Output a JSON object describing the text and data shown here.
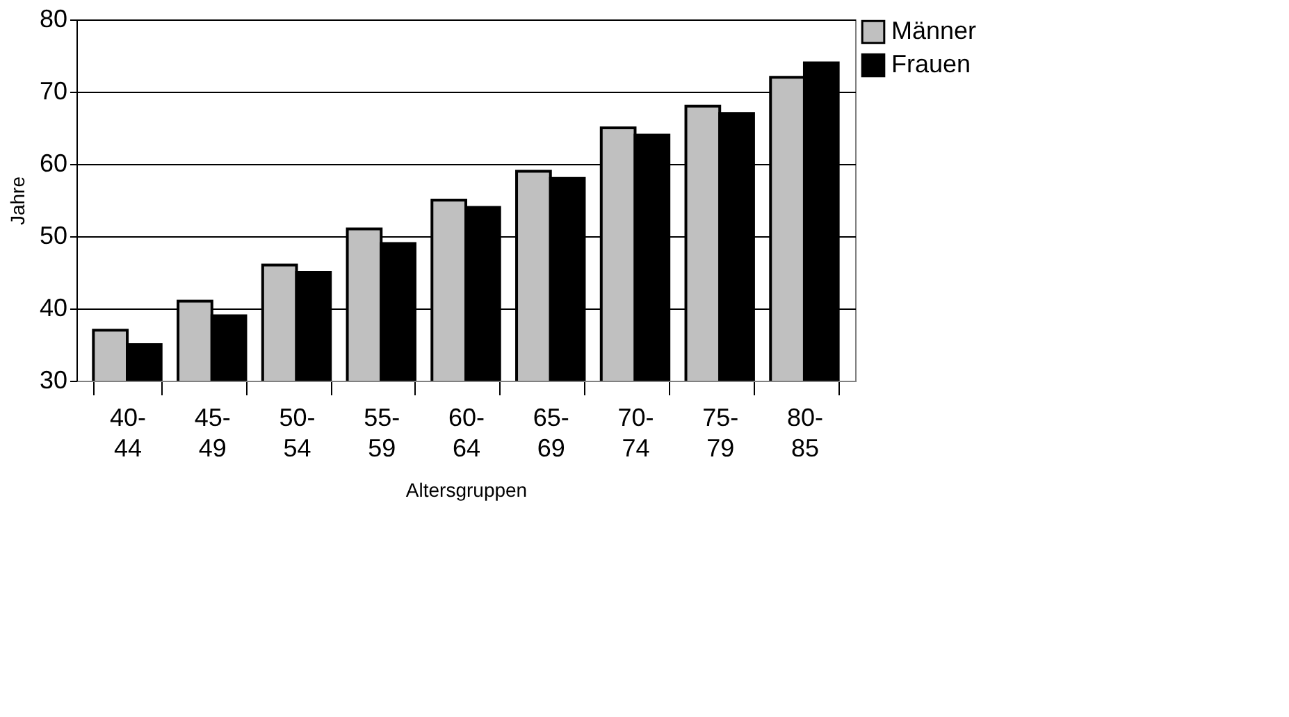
{
  "chart_data": {
    "type": "bar",
    "xlabel": "Altersgruppen",
    "ylabel": "Jahre",
    "categories": [
      "40-44",
      "45-49",
      "50-54",
      "55-59",
      "60-64",
      "65-69",
      "70-74",
      "75-79",
      "80-85"
    ],
    "series": [
      {
        "name": "Männer",
        "color": "#c0c0c0",
        "values": [
          37,
          41,
          46,
          51,
          55,
          59,
          65,
          68,
          72
        ]
      },
      {
        "name": "Frauen",
        "color": "#000000",
        "values": [
          35,
          39,
          45,
          49,
          54,
          58,
          64,
          67,
          74
        ]
      }
    ],
    "ylim": [
      30,
      80
    ],
    "yticks": [
      30,
      40,
      50,
      60,
      70,
      80
    ],
    "grid": "y",
    "legend": "top right"
  }
}
